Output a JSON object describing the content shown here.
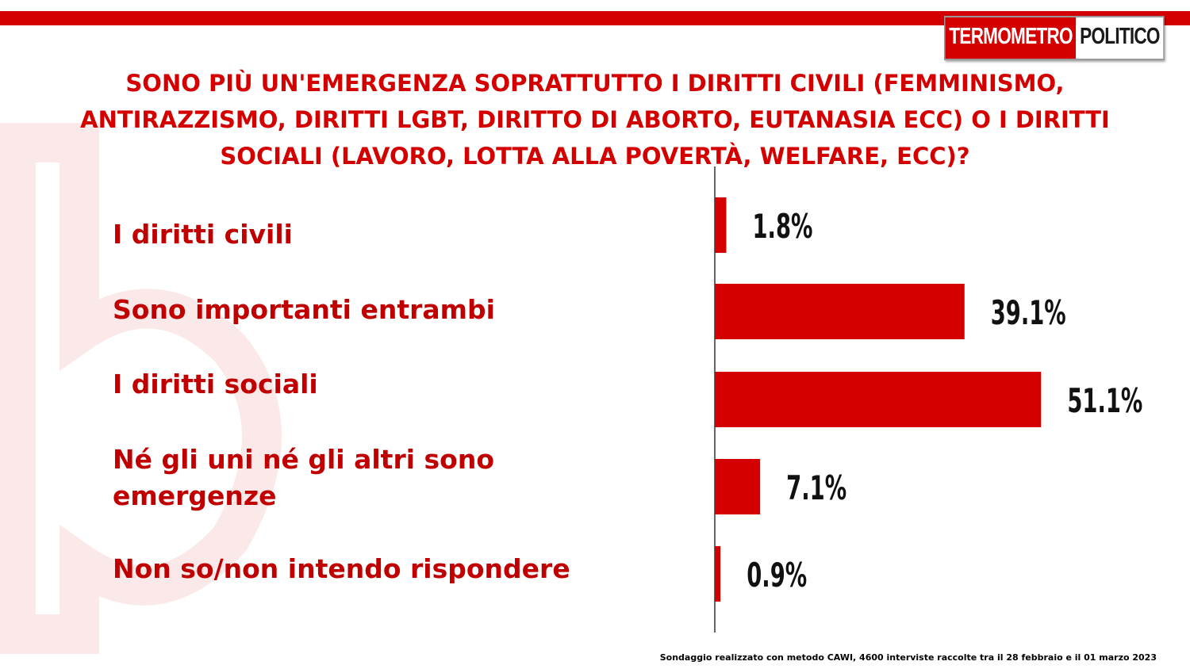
{
  "logo": {
    "part1": "TERMOMETRO",
    "part2": "POLITICO"
  },
  "chart_data": {
    "type": "bar",
    "orientation": "horizontal",
    "title": "SONO PIÙ UN'EMERGENZA SOPRATTUTTO I DIRITTI CIVILI (FEMMINISMO, ANTIRAZZISMO, DIRITTI LGBT, DIRITTO DI ABORTO, EUTANASIA ECC) O I DIRITTI SOCIALI (LAVORO, LOTTA ALLA POVERTÀ, WELFARE, ECC)?",
    "categories": [
      "I diritti civili",
      "Sono importanti entrambi",
      "I diritti sociali",
      "Né gli uni né gli altri sono emergenze",
      "Non so/non intendo rispondere"
    ],
    "values": [
      1.8,
      39.1,
      51.1,
      7.1,
      0.9
    ],
    "value_labels": [
      "1.8%",
      "39.1%",
      "51.1%",
      "7.1%",
      "0.9%"
    ],
    "unit": "%",
    "bar_color": "#d40000",
    "xlim": [
      0,
      60
    ],
    "grid": false,
    "legend": "none"
  },
  "footnote": "Sondaggio realizzato con metodo CAWI, 4600 interviste raccolte tra il 28 febbraio e il 01 marzo 2023"
}
